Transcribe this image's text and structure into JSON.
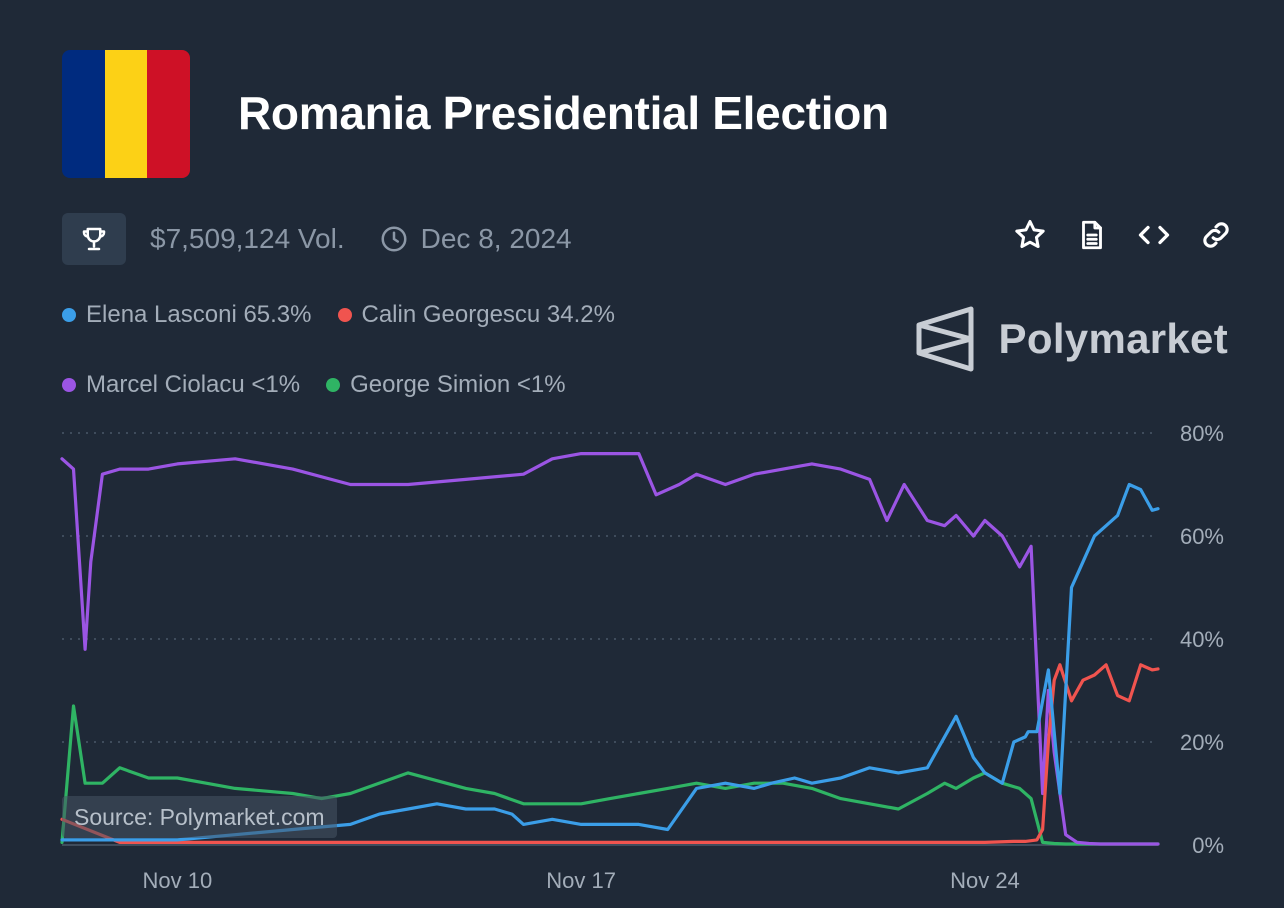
{
  "header": {
    "title": "Romania Presidential Election",
    "flag_colors": [
      "#002b7f",
      "#fcd116",
      "#ce1126"
    ]
  },
  "meta": {
    "volume": "$7,509,124 Vol.",
    "end_date": "Dec 8, 2024",
    "icons": [
      "trophy-icon",
      "clock-icon"
    ]
  },
  "actions": [
    {
      "name": "star-icon",
      "label": "Bookmark"
    },
    {
      "name": "document-icon",
      "label": "Rules"
    },
    {
      "name": "code-icon",
      "label": "Embed"
    },
    {
      "name": "link-icon",
      "label": "Copy link"
    }
  ],
  "legend": [
    {
      "label": "Elena Lasconi 65.3%",
      "color": "#3b9ee8"
    },
    {
      "label": "Calin Georgescu 34.2%",
      "color": "#f0544f"
    },
    {
      "label": "Marcel Ciolacu <1%",
      "color": "#9b55e4"
    },
    {
      "label": "George Simion <1%",
      "color": "#2fb464"
    }
  ],
  "brand": {
    "name": "Polymarket"
  },
  "source": "Source: Polymarket.com",
  "chart_data": {
    "type": "line",
    "x_unit": "days (date axis)",
    "x_range": [
      "Nov 8",
      "Nov 27"
    ],
    "ylim": [
      0,
      80
    ],
    "y_ticks": [
      0,
      20,
      40,
      60,
      80
    ],
    "y_tick_labels": [
      "0%",
      "20%",
      "40%",
      "60%",
      "80%"
    ],
    "x_ticks": [
      10,
      17,
      24
    ],
    "x_tick_labels": [
      "Nov 10",
      "Nov 17",
      "Nov 24"
    ],
    "grid": true,
    "series": [
      {
        "name": "Elena Lasconi",
        "color": "#3b9ee8",
        "x": [
          8.0,
          9.0,
          10.0,
          11.0,
          12.0,
          13.0,
          13.5,
          14.0,
          14.5,
          15.0,
          15.5,
          15.8,
          16.0,
          16.5,
          17.0,
          17.5,
          18.0,
          18.5,
          19.0,
          19.5,
          20.0,
          20.3,
          20.7,
          21.0,
          21.5,
          22.0,
          22.5,
          23.0,
          23.5,
          23.8,
          24.0,
          24.3,
          24.5,
          24.7,
          24.75,
          24.9,
          25.1,
          25.3,
          25.5,
          25.7,
          25.9,
          26.1,
          26.3,
          26.5,
          26.7,
          26.9,
          27.0
        ],
        "y": [
          1,
          1,
          1,
          2,
          3,
          4,
          6,
          7,
          8,
          7,
          7,
          6,
          4,
          5,
          4,
          4,
          4,
          3,
          11,
          12,
          11,
          12,
          13,
          12,
          13,
          15,
          14,
          15,
          25,
          17,
          14,
          12,
          20,
          21,
          22,
          22,
          34,
          10,
          50,
          55,
          60,
          62,
          64,
          70,
          69,
          65,
          65.3
        ]
      },
      {
        "name": "Calin Georgescu",
        "color": "#f0544f",
        "x": [
          8.0,
          9.0,
          10.0,
          11.0,
          12.0,
          13.0,
          14.0,
          15.0,
          16.0,
          17.0,
          18.0,
          19.0,
          20.0,
          21.0,
          22.0,
          23.0,
          24.0,
          24.5,
          24.7,
          24.9,
          25.0,
          25.1,
          25.2,
          25.3,
          25.5,
          25.7,
          25.9,
          26.1,
          26.3,
          26.5,
          26.7,
          26.9,
          27.0
        ],
        "y": [
          5,
          0.5,
          0.5,
          0.5,
          0.5,
          0.5,
          0.5,
          0.5,
          0.5,
          0.5,
          0.5,
          0.5,
          0.5,
          0.5,
          0.5,
          0.5,
          0.5,
          0.7,
          0.7,
          1,
          3,
          20,
          32,
          35,
          28,
          32,
          33,
          35,
          29,
          28,
          35,
          34,
          34.2
        ]
      },
      {
        "name": "Marcel Ciolacu",
        "color": "#9b55e4",
        "x": [
          8.0,
          8.2,
          8.4,
          8.5,
          8.7,
          9.0,
          9.5,
          10.0,
          11.0,
          12.0,
          13.0,
          14.0,
          15.0,
          16.0,
          16.5,
          17.0,
          17.5,
          18.0,
          18.3,
          18.7,
          19.0,
          19.5,
          20.0,
          20.5,
          21.0,
          21.5,
          22.0,
          22.3,
          22.6,
          23.0,
          23.3,
          23.5,
          23.8,
          24.0,
          24.3,
          24.6,
          24.8,
          25.0,
          25.1,
          25.2,
          25.4,
          25.6,
          25.8,
          26.0,
          26.3,
          27.0
        ],
        "y": [
          75,
          73,
          38,
          55,
          72,
          73,
          73,
          74,
          75,
          73,
          70,
          70,
          71,
          72,
          75,
          76,
          76,
          76,
          68,
          70,
          72,
          70,
          72,
          73,
          74,
          73,
          71,
          63,
          70,
          63,
          62,
          64,
          60,
          63,
          60,
          54,
          58,
          10,
          30,
          18,
          2,
          0.5,
          0.3,
          0.2,
          0.2,
          0.2
        ]
      },
      {
        "name": "George Simion",
        "color": "#2fb464",
        "x": [
          8.0,
          8.2,
          8.4,
          8.7,
          9.0,
          9.5,
          10.0,
          10.5,
          11.0,
          12.0,
          12.5,
          13.0,
          14.0,
          15.0,
          15.5,
          16.0,
          16.5,
          17.0,
          17.5,
          18.0,
          18.5,
          19.0,
          19.5,
          20.0,
          20.5,
          21.0,
          21.5,
          22.0,
          22.5,
          23.0,
          23.3,
          23.5,
          23.8,
          24.0,
          24.3,
          24.6,
          24.8,
          25.0,
          25.2,
          25.4,
          26.0,
          27.0
        ],
        "y": [
          0.5,
          27,
          12,
          12,
          15,
          13,
          13,
          12,
          11,
          10,
          9,
          10,
          14,
          11,
          10,
          8,
          8,
          8,
          9,
          10,
          11,
          12,
          11,
          12,
          12,
          11,
          9,
          8,
          7,
          10,
          12,
          11,
          13,
          14,
          12,
          11,
          9,
          0.5,
          0.3,
          0.2,
          0.2,
          0.2
        ]
      }
    ]
  }
}
